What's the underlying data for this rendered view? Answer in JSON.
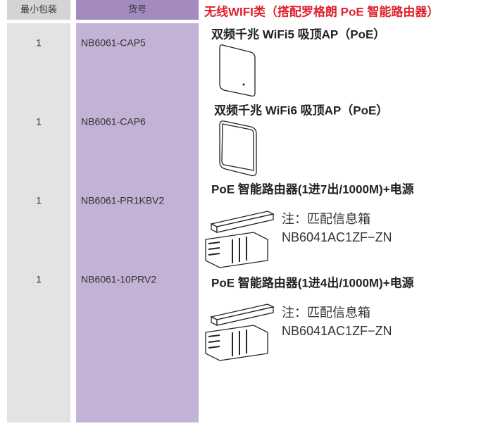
{
  "header": {
    "columns": [
      "最小包装",
      "货号"
    ],
    "title": "无线WIFI类（搭配罗格朗 PoE 智能路由器）"
  },
  "rows": [
    {
      "qty": "1",
      "code": "NB6061-CAP5",
      "heading": "双频千兆 WiFi5 吸顶AP（PoE）"
    },
    {
      "qty": "1",
      "code": "NB6061-CAP6",
      "heading": "双频千兆 WiFi6 吸顶AP（PoE）"
    },
    {
      "qty": "1",
      "code": "NB6061-PR1KBV2",
      "heading": "PoE 智能路由器(1进7出/1000M)+电源",
      "note": [
        "注：匹配信息箱",
        "NB6041AC1ZF−ZN"
      ]
    },
    {
      "qty": "1",
      "code": "NB6061-10PRV2",
      "heading": "PoE 智能路由器(1进4出/1000M)+电源",
      "note": [
        "注：匹配信息箱",
        "NB6041AC1ZF−ZN"
      ]
    }
  ]
}
